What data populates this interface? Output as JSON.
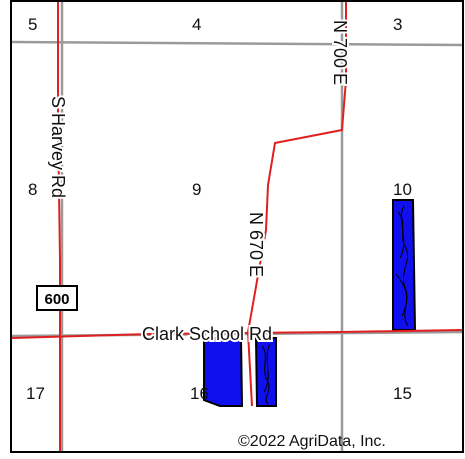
{
  "sections": [
    "5",
    "4",
    "3",
    "8",
    "9",
    "10",
    "17",
    "16",
    "15"
  ],
  "roads": {
    "harvey": "S Harvey Rd",
    "n700": "N 700 E",
    "n670": "N 670 E",
    "clark": "Clark School Rd"
  },
  "route_shield": "600",
  "copyright": "©2022 AgriData, Inc.",
  "colors": {
    "road": "#e02020",
    "section_line": "#9a9a9a",
    "field_fill": "#1010ee",
    "field_outline": "#000000",
    "border": "#000000"
  }
}
